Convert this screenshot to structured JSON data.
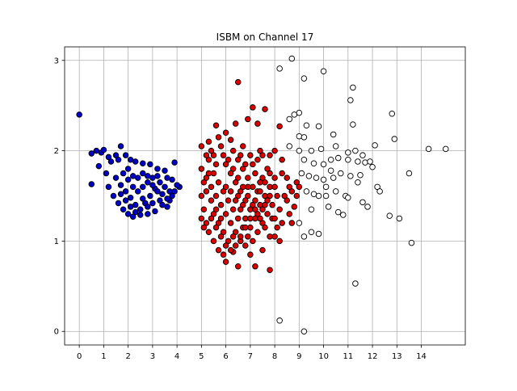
{
  "chart_data": {
    "type": "scatter",
    "title": "ISBM on Channel 17",
    "xlabel": "",
    "ylabel": "",
    "xlim": [
      -0.6,
      15.8
    ],
    "ylim": [
      -0.15,
      3.15
    ],
    "x_ticks": [
      "0",
      "1",
      "2",
      "3",
      "4",
      "5",
      "6",
      "7",
      "8",
      "9",
      "10",
      "11",
      "12",
      "13",
      "14"
    ],
    "y_ticks": [
      "0",
      "1",
      "2",
      "3"
    ],
    "grid": true,
    "legend": "none",
    "series": [
      {
        "color": "#0000ff",
        "marker_face": "#0000cc",
        "marker_edge": "#000000",
        "points": [
          [
            0.0,
            2.4
          ],
          [
            0.5,
            1.97
          ],
          [
            0.7,
            2.0
          ],
          [
            0.9,
            1.98
          ],
          [
            1.0,
            2.01
          ],
          [
            1.2,
            1.93
          ],
          [
            0.5,
            1.63
          ],
          [
            0.8,
            1.83
          ],
          [
            1.1,
            1.75
          ],
          [
            1.3,
            1.88
          ],
          [
            1.5,
            1.95
          ],
          [
            1.7,
            2.05
          ],
          [
            1.6,
            1.9
          ],
          [
            1.9,
            1.95
          ],
          [
            2.1,
            1.9
          ],
          [
            2.3,
            1.88
          ],
          [
            2.6,
            1.86
          ],
          [
            2.9,
            1.85
          ],
          [
            3.2,
            1.8
          ],
          [
            3.6,
            1.7
          ],
          [
            3.9,
            1.87
          ],
          [
            4.1,
            1.6
          ],
          [
            1.2,
            1.6
          ],
          [
            1.4,
            1.5
          ],
          [
            1.6,
            1.42
          ],
          [
            1.8,
            1.35
          ],
          [
            2.0,
            1.3
          ],
          [
            2.2,
            1.27
          ],
          [
            2.5,
            1.29
          ],
          [
            2.8,
            1.3
          ],
          [
            3.1,
            1.33
          ],
          [
            3.4,
            1.4
          ],
          [
            3.7,
            1.45
          ],
          [
            3.9,
            1.55
          ],
          [
            1.5,
            1.7
          ],
          [
            1.7,
            1.62
          ],
          [
            1.9,
            1.55
          ],
          [
            2.1,
            1.48
          ],
          [
            2.3,
            1.4
          ],
          [
            2.5,
            1.35
          ],
          [
            2.7,
            1.42
          ],
          [
            2.9,
            1.5
          ],
          [
            3.1,
            1.58
          ],
          [
            3.3,
            1.65
          ],
          [
            3.5,
            1.6
          ],
          [
            3.7,
            1.55
          ],
          [
            1.8,
            1.75
          ],
          [
            2.0,
            1.68
          ],
          [
            2.2,
            1.6
          ],
          [
            2.4,
            1.55
          ],
          [
            2.6,
            1.6
          ],
          [
            2.8,
            1.65
          ],
          [
            3.0,
            1.7
          ],
          [
            3.2,
            1.72
          ],
          [
            3.4,
            1.52
          ],
          [
            3.6,
            1.47
          ],
          [
            2.0,
            1.8
          ],
          [
            2.2,
            1.72
          ],
          [
            2.4,
            1.7
          ],
          [
            2.6,
            1.75
          ],
          [
            2.8,
            1.72
          ],
          [
            3.0,
            1.62
          ],
          [
            3.2,
            1.55
          ],
          [
            3.3,
            1.45
          ],
          [
            2.1,
            1.38
          ],
          [
            2.3,
            1.32
          ],
          [
            2.6,
            1.47
          ],
          [
            2.8,
            1.38
          ],
          [
            3.0,
            1.42
          ],
          [
            1.9,
            1.45
          ],
          [
            1.7,
            1.52
          ],
          [
            3.5,
            1.78
          ],
          [
            3.8,
            1.68
          ],
          [
            4.0,
            1.62
          ],
          [
            3.6,
            1.38
          ],
          [
            3.8,
            1.5
          ]
        ]
      },
      {
        "color": "#ff0000",
        "marker_face": "#dd0000",
        "marker_edge": "#000000",
        "points": [
          [
            6.5,
            2.76
          ],
          [
            7.1,
            2.48
          ],
          [
            7.6,
            2.46
          ],
          [
            6.0,
            2.2
          ],
          [
            6.4,
            2.3
          ],
          [
            6.9,
            2.35
          ],
          [
            7.3,
            2.3
          ],
          [
            5.6,
            2.28
          ],
          [
            8.2,
            2.27
          ],
          [
            8.0,
            2.0
          ],
          [
            8.3,
            1.9
          ],
          [
            8.5,
            1.7
          ],
          [
            8.7,
            1.55
          ],
          [
            8.9,
            1.65
          ],
          [
            5.0,
            2.05
          ],
          [
            5.3,
            2.1
          ],
          [
            5.5,
            1.95
          ],
          [
            5.8,
            2.05
          ],
          [
            6.2,
            2.12
          ],
          [
            6.7,
            2.05
          ],
          [
            7.4,
            2.0
          ],
          [
            7.8,
            1.95
          ],
          [
            5.0,
            1.8
          ],
          [
            5.2,
            1.7
          ],
          [
            5.4,
            1.6
          ],
          [
            5.6,
            1.5
          ],
          [
            5.8,
            1.4
          ],
          [
            6.0,
            1.3
          ],
          [
            6.2,
            1.2
          ],
          [
            6.4,
            1.1
          ],
          [
            6.6,
            1.0
          ],
          [
            6.8,
            0.95
          ],
          [
            5.0,
            1.5
          ],
          [
            5.1,
            1.35
          ],
          [
            5.2,
            1.2
          ],
          [
            5.3,
            1.1
          ],
          [
            5.5,
            1.0
          ],
          [
            5.7,
            0.9
          ],
          [
            5.9,
            0.85
          ],
          [
            6.0,
            0.77
          ],
          [
            6.5,
            0.72
          ],
          [
            7.2,
            0.72
          ],
          [
            7.8,
            0.68
          ],
          [
            6.3,
            0.88
          ],
          [
            7.0,
            0.85
          ],
          [
            7.5,
            0.9
          ],
          [
            8.0,
            1.05
          ],
          [
            8.3,
            1.2
          ],
          [
            8.6,
            1.3
          ],
          [
            8.8,
            1.38
          ],
          [
            5.5,
            1.75
          ],
          [
            5.7,
            1.65
          ],
          [
            5.9,
            1.55
          ],
          [
            6.1,
            1.45
          ],
          [
            6.3,
            1.35
          ],
          [
            6.5,
            1.25
          ],
          [
            6.7,
            1.15
          ],
          [
            6.9,
            1.05
          ],
          [
            7.1,
            1.0
          ],
          [
            7.3,
            1.1
          ],
          [
            7.5,
            1.2
          ],
          [
            7.7,
            1.3
          ],
          [
            7.9,
            1.4
          ],
          [
            8.1,
            1.5
          ],
          [
            6.0,
            1.85
          ],
          [
            6.2,
            1.75
          ],
          [
            6.4,
            1.65
          ],
          [
            6.6,
            1.55
          ],
          [
            6.8,
            1.45
          ],
          [
            7.0,
            1.35
          ],
          [
            7.2,
            1.25
          ],
          [
            7.4,
            1.4
          ],
          [
            7.6,
            1.5
          ],
          [
            7.8,
            1.6
          ],
          [
            8.0,
            1.7
          ],
          [
            6.5,
            1.9
          ],
          [
            6.7,
            1.8
          ],
          [
            6.9,
            1.7
          ],
          [
            7.1,
            1.6
          ],
          [
            7.3,
            1.55
          ],
          [
            7.5,
            1.7
          ],
          [
            7.7,
            1.8
          ],
          [
            5.3,
            1.9
          ],
          [
            5.5,
            1.3
          ],
          [
            5.7,
            1.2
          ],
          [
            5.9,
            1.1
          ],
          [
            6.1,
            1.0
          ],
          [
            6.3,
            1.05
          ],
          [
            6.5,
            1.5
          ],
          [
            6.7,
            1.4
          ],
          [
            6.9,
            1.6
          ],
          [
            7.1,
            1.85
          ],
          [
            7.3,
            1.9
          ],
          [
            7.5,
            1.95
          ],
          [
            5.2,
            1.55
          ],
          [
            5.4,
            1.45
          ],
          [
            5.6,
            1.35
          ],
          [
            5.8,
            1.25
          ],
          [
            6.0,
            1.6
          ],
          [
            6.2,
            1.55
          ],
          [
            6.4,
            1.45
          ],
          [
            6.6,
            1.35
          ],
          [
            6.8,
            1.25
          ],
          [
            7.0,
            1.15
          ],
          [
            7.2,
            1.45
          ],
          [
            7.4,
            1.55
          ],
          [
            7.6,
            1.65
          ],
          [
            7.8,
            1.75
          ],
          [
            8.2,
            1.35
          ],
          [
            8.4,
            1.5
          ],
          [
            8.6,
            1.6
          ],
          [
            5.1,
            1.65
          ],
          [
            5.3,
            1.75
          ],
          [
            5.6,
            1.85
          ],
          [
            5.9,
            1.95
          ],
          [
            6.1,
            1.9
          ],
          [
            6.3,
            1.8
          ],
          [
            6.5,
            1.7
          ],
          [
            6.7,
            1.6
          ],
          [
            6.9,
            1.5
          ],
          [
            7.1,
            1.4
          ],
          [
            7.3,
            1.3
          ],
          [
            7.5,
            1.35
          ],
          [
            7.7,
            1.45
          ],
          [
            7.9,
            1.25
          ],
          [
            8.1,
            1.15
          ],
          [
            5.4,
            1.25
          ],
          [
            5.6,
            1.15
          ],
          [
            5.8,
            1.05
          ],
          [
            6.0,
            0.95
          ],
          [
            6.2,
            0.9
          ],
          [
            6.4,
            0.95
          ],
          [
            6.6,
            1.05
          ],
          [
            6.8,
            1.15
          ],
          [
            7.0,
            1.25
          ],
          [
            7.2,
            1.35
          ],
          [
            7.4,
            1.25
          ],
          [
            7.6,
            1.15
          ],
          [
            7.8,
            1.05
          ],
          [
            8.0,
            1.25
          ],
          [
            8.2,
            1.0
          ],
          [
            5.0,
            1.25
          ],
          [
            5.1,
            1.15
          ],
          [
            5.2,
            1.95
          ],
          [
            5.4,
            2.0
          ],
          [
            5.7,
            2.15
          ],
          [
            6.3,
            2.0
          ],
          [
            6.6,
            1.95
          ],
          [
            6.8,
            1.85
          ],
          [
            7.0,
            1.95
          ],
          [
            7.2,
            1.75
          ],
          [
            7.4,
            1.65
          ],
          [
            7.6,
            1.4
          ],
          [
            7.8,
            1.5
          ],
          [
            8.0,
            1.6
          ],
          [
            8.3,
            1.75
          ],
          [
            8.5,
            1.45
          ],
          [
            8.7,
            1.2
          ],
          [
            8.9,
            1.5
          ],
          [
            9.0,
            1.6
          ]
        ]
      },
      {
        "color": "#ffffff",
        "marker_face": "#ffffff",
        "marker_edge": "#000000",
        "points": [
          [
            8.7,
            3.02
          ],
          [
            8.2,
            2.91
          ],
          [
            9.2,
            2.8
          ],
          [
            10.0,
            2.88
          ],
          [
            11.2,
            2.7
          ],
          [
            11.1,
            2.56
          ],
          [
            9.0,
            2.42
          ],
          [
            8.6,
            2.35
          ],
          [
            8.8,
            2.4
          ],
          [
            12.8,
            2.41
          ],
          [
            9.3,
            2.28
          ],
          [
            9.8,
            2.27
          ],
          [
            11.2,
            2.29
          ],
          [
            9.0,
            2.16
          ],
          [
            9.2,
            2.15
          ],
          [
            10.4,
            2.18
          ],
          [
            12.9,
            2.13
          ],
          [
            8.6,
            2.05
          ],
          [
            9.0,
            2.0
          ],
          [
            9.5,
            2.0
          ],
          [
            9.9,
            2.02
          ],
          [
            10.5,
            2.05
          ],
          [
            11.0,
            1.98
          ],
          [
            11.3,
            2.0
          ],
          [
            11.6,
            1.95
          ],
          [
            12.1,
            2.06
          ],
          [
            14.3,
            2.02
          ],
          [
            15.0,
            2.02
          ],
          [
            9.2,
            1.9
          ],
          [
            9.6,
            1.86
          ],
          [
            10.0,
            1.85
          ],
          [
            10.3,
            1.9
          ],
          [
            10.6,
            1.92
          ],
          [
            11.0,
            1.9
          ],
          [
            11.4,
            1.88
          ],
          [
            11.7,
            1.87
          ],
          [
            11.9,
            1.88
          ],
          [
            12.0,
            1.82
          ],
          [
            12.2,
            1.6
          ],
          [
            12.3,
            1.55
          ],
          [
            9.1,
            1.75
          ],
          [
            9.4,
            1.72
          ],
          [
            9.7,
            1.7
          ],
          [
            10.0,
            1.68
          ],
          [
            10.4,
            1.7
          ],
          [
            10.7,
            1.75
          ],
          [
            11.1,
            1.72
          ],
          [
            11.5,
            1.73
          ],
          [
            13.5,
            1.75
          ],
          [
            9.3,
            1.55
          ],
          [
            9.6,
            1.52
          ],
          [
            9.8,
            1.5
          ],
          [
            10.1,
            1.5
          ],
          [
            10.5,
            1.55
          ],
          [
            10.9,
            1.5
          ],
          [
            11.0,
            1.48
          ],
          [
            11.6,
            1.43
          ],
          [
            11.8,
            1.38
          ],
          [
            10.2,
            1.38
          ],
          [
            10.6,
            1.32
          ],
          [
            10.8,
            1.29
          ],
          [
            12.7,
            1.28
          ],
          [
            13.1,
            1.25
          ],
          [
            9.0,
            1.2
          ],
          [
            9.5,
            1.1
          ],
          [
            9.8,
            1.08
          ],
          [
            9.2,
            1.05
          ],
          [
            13.6,
            0.98
          ],
          [
            11.3,
            0.53
          ],
          [
            8.2,
            0.12
          ],
          [
            9.2,
            0.0
          ],
          [
            10.1,
            1.6
          ],
          [
            10.3,
            1.78
          ],
          [
            11.4,
            1.65
          ],
          [
            9.5,
            1.35
          ]
        ]
      }
    ]
  }
}
